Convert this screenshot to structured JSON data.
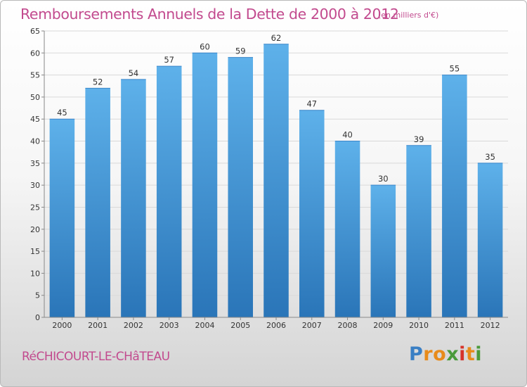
{
  "unit_label": "(en milliers d'€)",
  "commune": "RéCHICOURT-LE-CHâTEAU",
  "logo": {
    "text": "Proxiti",
    "letters": [
      "P",
      "r",
      "o",
      "x",
      "i",
      "t",
      "i"
    ],
    "colors": [
      "#3a7fc4",
      "#e88b1a",
      "#e88b1a",
      "#4a9a3a",
      "#d6342b",
      "#e88b1a",
      "#4a9a3a"
    ]
  },
  "colors": {
    "bar_light": "#5eb1ea",
    "bar_dark": "#2a75b8",
    "title": "#c24a8e"
  },
  "chart_data": {
    "type": "bar",
    "title": "Remboursements Annuels de la Dette de 2000 à 2012",
    "xlabel": "",
    "ylabel": "",
    "categories": [
      "2000",
      "2001",
      "2002",
      "2003",
      "2004",
      "2005",
      "2006",
      "2007",
      "2008",
      "2009",
      "2010",
      "2011",
      "2012"
    ],
    "values": [
      45,
      52,
      54,
      57,
      60,
      59,
      62,
      47,
      40,
      30,
      39,
      55,
      35
    ],
    "ylim": [
      0,
      65
    ],
    "yticks": [
      0,
      5,
      10,
      15,
      20,
      25,
      30,
      35,
      40,
      45,
      50,
      55,
      60,
      65
    ],
    "grid": true,
    "data_labels": true
  }
}
